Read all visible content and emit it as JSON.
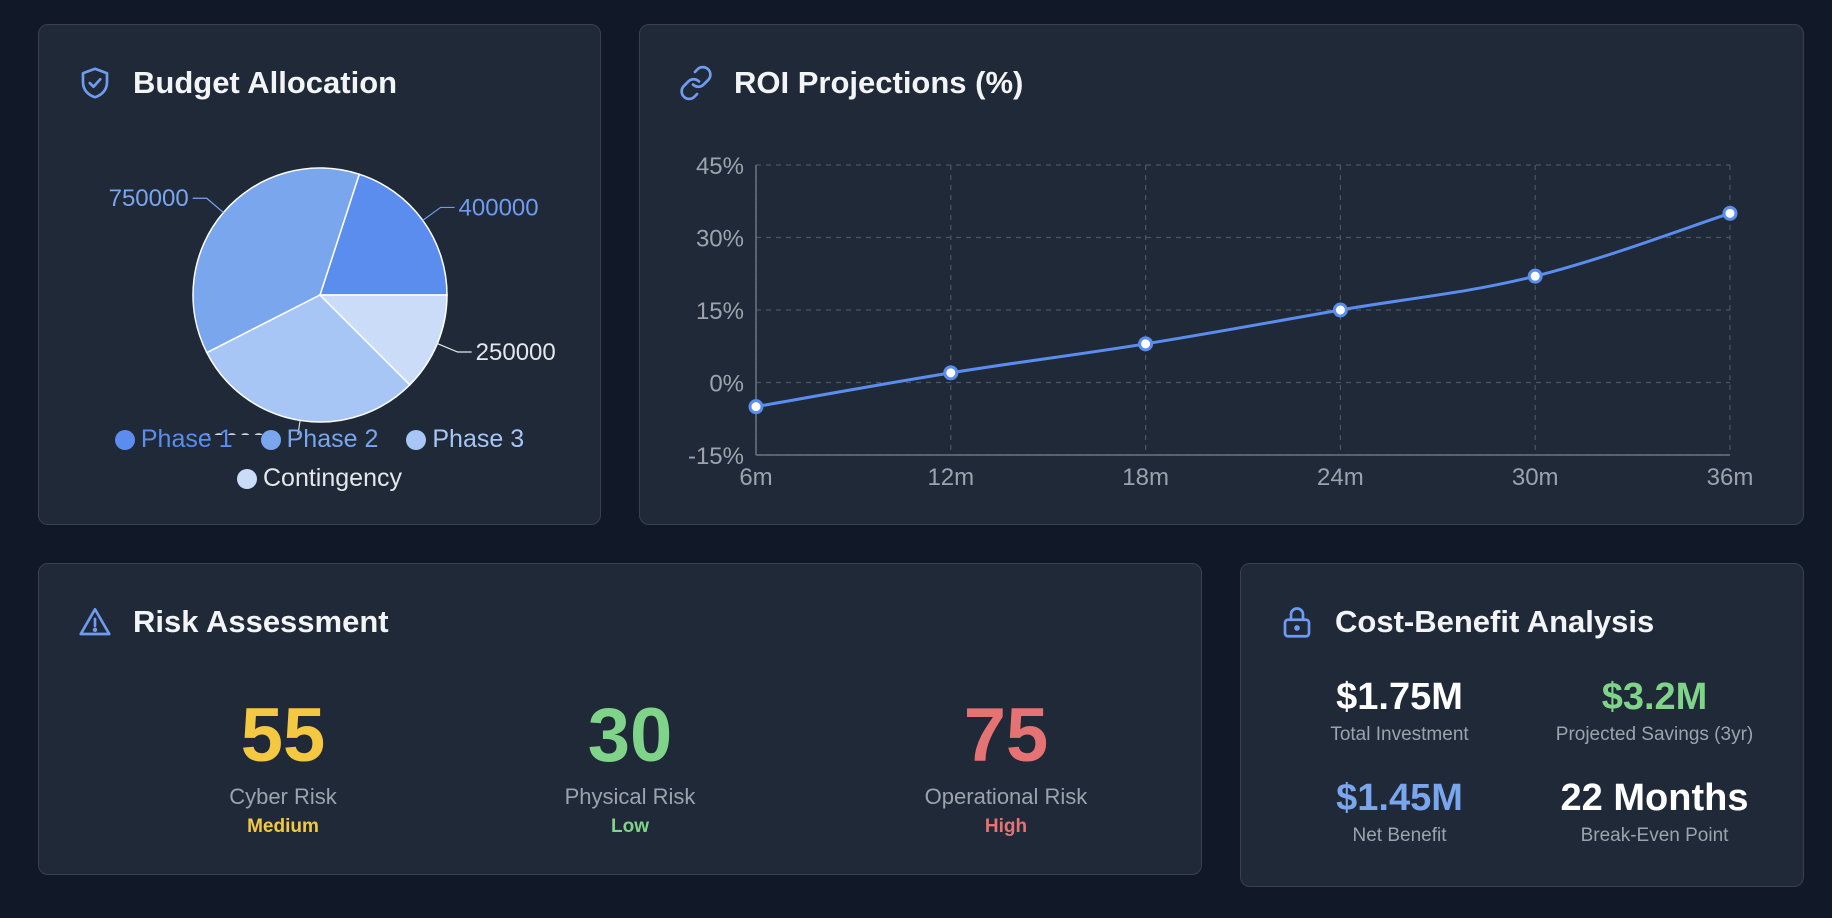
{
  "colors": {
    "background": "#111827",
    "card": "#1f2937",
    "accent_blue": "#5b8def",
    "yellow": "#f5c842",
    "green": "#7fd48a",
    "red": "#e57373",
    "light_blue": "#7aa6ee"
  },
  "budget": {
    "title": "Budget Allocation",
    "icon": "shield-check-icon",
    "chart_data": {
      "type": "pie",
      "categories": [
        "Phase 1",
        "Phase 2",
        "Phase 3",
        "Contingency"
      ],
      "values": [
        400000,
        750000,
        600000,
        250000
      ],
      "data_labels": [
        "400000",
        "750000",
        "600000",
        "250000"
      ],
      "colors": [
        "#5b8def",
        "#7aa6ee",
        "#a8c6f5",
        "#cadcf8"
      ],
      "legend_position": "bottom"
    }
  },
  "roi": {
    "title": "ROI Projections (%)",
    "icon": "link-icon",
    "chart_data": {
      "type": "line",
      "x": [
        "6m",
        "12m",
        "18m",
        "24m",
        "30m",
        "36m"
      ],
      "series": [
        {
          "values": [
            -5,
            2,
            8,
            15,
            22,
            35
          ]
        }
      ],
      "ylim": [
        -15,
        45
      ],
      "yticks": [
        "45%",
        "30%",
        "15%",
        "0%",
        "-15%"
      ],
      "ytick_values": [
        45,
        30,
        15,
        0,
        -15
      ],
      "grid": true,
      "color": "#5b8def"
    }
  },
  "risk": {
    "title": "Risk Assessment",
    "icon": "warning-icon",
    "items": [
      {
        "value": "55",
        "label": "Cyber Risk",
        "level": "Medium",
        "color": "#f5c842"
      },
      {
        "value": "30",
        "label": "Physical Risk",
        "level": "Low",
        "color": "#7fd48a"
      },
      {
        "value": "75",
        "label": "Operational Risk",
        "level": "High",
        "color": "#e57373"
      }
    ]
  },
  "cost_benefit": {
    "title": "Cost-Benefit Analysis",
    "icon": "lock-icon",
    "items": [
      {
        "value": "$1.75M",
        "label": "Total Investment",
        "color": "#ffffff"
      },
      {
        "value": "$3.2M",
        "label": "Projected Savings (3yr)",
        "color": "#7fd48a"
      },
      {
        "value": "$1.45M",
        "label": "Net Benefit",
        "color": "#7aa6ee"
      },
      {
        "value": "22 Months",
        "label": "Break-Even Point",
        "color": "#ffffff"
      }
    ]
  }
}
